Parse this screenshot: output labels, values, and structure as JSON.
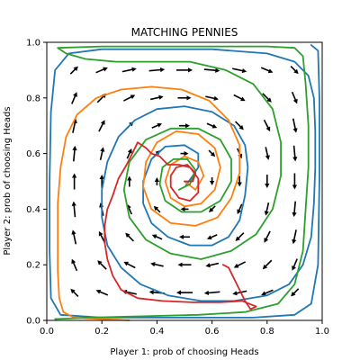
{
  "chart_data": {
    "type": "line",
    "title": "MATCHING PENNIES",
    "xlabel": "Player 1: prob of choosing Heads",
    "ylabel": "Player 2: prob of choosing Heads",
    "xlim": [
      0.0,
      1.0
    ],
    "ylim": [
      0.0,
      1.0
    ],
    "xticks": [
      "0.0",
      "0.2",
      "0.4",
      "0.6",
      "0.8",
      "1.0"
    ],
    "yticks": [
      "0.0",
      "0.2",
      "0.4",
      "0.6",
      "0.8",
      "1.0"
    ],
    "grid": false,
    "vector_field": {
      "grid": [
        0.1,
        0.2,
        0.3,
        0.4,
        0.5,
        0.6,
        0.7,
        0.8,
        0.9
      ]
    },
    "series": [
      {
        "color": "#1f77b4",
        "points": [
          [
            0.505,
            0.485
          ],
          [
            0.53,
            0.52
          ],
          [
            0.55,
            0.55
          ],
          [
            0.55,
            0.6
          ],
          [
            0.5,
            0.63
          ],
          [
            0.43,
            0.625
          ],
          [
            0.38,
            0.58
          ],
          [
            0.35,
            0.5
          ],
          [
            0.35,
            0.42
          ],
          [
            0.38,
            0.35
          ],
          [
            0.44,
            0.3
          ],
          [
            0.52,
            0.27
          ],
          [
            0.6,
            0.27
          ],
          [
            0.66,
            0.3
          ],
          [
            0.7,
            0.36
          ],
          [
            0.72,
            0.45
          ],
          [
            0.73,
            0.55
          ],
          [
            0.72,
            0.63
          ],
          [
            0.68,
            0.7
          ],
          [
            0.6,
            0.75
          ],
          [
            0.5,
            0.77
          ],
          [
            0.4,
            0.76
          ],
          [
            0.32,
            0.72
          ],
          [
            0.26,
            0.66
          ],
          [
            0.22,
            0.57
          ],
          [
            0.2,
            0.47
          ],
          [
            0.2,
            0.37
          ],
          [
            0.22,
            0.27
          ],
          [
            0.27,
            0.19
          ],
          [
            0.34,
            0.13
          ],
          [
            0.44,
            0.09
          ],
          [
            0.56,
            0.07
          ],
          [
            0.68,
            0.07
          ],
          [
            0.8,
            0.09
          ],
          [
            0.88,
            0.13
          ],
          [
            0.93,
            0.2
          ],
          [
            0.96,
            0.3
          ],
          [
            0.97,
            0.42
          ],
          [
            0.975,
            0.55
          ],
          [
            0.975,
            0.68
          ],
          [
            0.97,
            0.8
          ],
          [
            0.95,
            0.88
          ],
          [
            0.9,
            0.93
          ],
          [
            0.8,
            0.96
          ],
          [
            0.6,
            0.975
          ],
          [
            0.4,
            0.975
          ],
          [
            0.2,
            0.975
          ],
          [
            0.08,
            0.96
          ],
          [
            0.03,
            0.9
          ],
          [
            0.015,
            0.75
          ],
          [
            0.01,
            0.5
          ],
          [
            0.01,
            0.25
          ],
          [
            0.015,
            0.08
          ],
          [
            0.05,
            0.02
          ],
          [
            0.2,
            0.01
          ],
          [
            0.5,
            0.01
          ],
          [
            0.75,
            0.01
          ],
          [
            0.9,
            0.02
          ],
          [
            0.96,
            0.06
          ],
          [
            0.985,
            0.2
          ],
          [
            0.99,
            0.5
          ],
          [
            0.99,
            0.8
          ],
          [
            0.985,
            0.97
          ],
          [
            0.96,
            0.99
          ]
        ]
      },
      {
        "color": "#ff7f0e",
        "points": [
          [
            0.5,
            0.5
          ],
          [
            0.54,
            0.47
          ],
          [
            0.57,
            0.52
          ],
          [
            0.55,
            0.57
          ],
          [
            0.5,
            0.59
          ],
          [
            0.45,
            0.56
          ],
          [
            0.43,
            0.5
          ],
          [
            0.45,
            0.44
          ],
          [
            0.5,
            0.41
          ],
          [
            0.56,
            0.42
          ],
          [
            0.61,
            0.47
          ],
          [
            0.63,
            0.55
          ],
          [
            0.61,
            0.62
          ],
          [
            0.55,
            0.67
          ],
          [
            0.47,
            0.68
          ],
          [
            0.4,
            0.64
          ],
          [
            0.36,
            0.57
          ],
          [
            0.35,
            0.48
          ],
          [
            0.38,
            0.4
          ],
          [
            0.45,
            0.35
          ],
          [
            0.54,
            0.34
          ],
          [
            0.62,
            0.37
          ],
          [
            0.67,
            0.44
          ],
          [
            0.7,
            0.53
          ],
          [
            0.7,
            0.63
          ],
          [
            0.66,
            0.72
          ],
          [
            0.59,
            0.79
          ],
          [
            0.49,
            0.83
          ],
          [
            0.38,
            0.84
          ],
          [
            0.27,
            0.83
          ],
          [
            0.18,
            0.8
          ],
          [
            0.11,
            0.74
          ],
          [
            0.07,
            0.66
          ],
          [
            0.05,
            0.55
          ],
          [
            0.04,
            0.42
          ],
          [
            0.04,
            0.3
          ],
          [
            0.04,
            0.18
          ],
          [
            0.045,
            0.08
          ],
          [
            0.06,
            0.03
          ],
          [
            0.1,
            0.01
          ],
          [
            0.2,
            0.005
          ],
          [
            0.3,
            0.0
          ]
        ]
      },
      {
        "color": "#2ca02c",
        "points": [
          [
            0.48,
            0.47
          ],
          [
            0.52,
            0.49
          ],
          [
            0.54,
            0.54
          ],
          [
            0.51,
            0.58
          ],
          [
            0.46,
            0.58
          ],
          [
            0.42,
            0.55
          ],
          [
            0.41,
            0.49
          ],
          [
            0.43,
            0.43
          ],
          [
            0.49,
            0.39
          ],
          [
            0.56,
            0.39
          ],
          [
            0.63,
            0.43
          ],
          [
            0.67,
            0.5
          ],
          [
            0.67,
            0.58
          ],
          [
            0.63,
            0.65
          ],
          [
            0.55,
            0.69
          ],
          [
            0.45,
            0.69
          ],
          [
            0.36,
            0.65
          ],
          [
            0.3,
            0.57
          ],
          [
            0.28,
            0.47
          ],
          [
            0.3,
            0.37
          ],
          [
            0.36,
            0.29
          ],
          [
            0.45,
            0.24
          ],
          [
            0.56,
            0.22
          ],
          [
            0.67,
            0.25
          ],
          [
            0.76,
            0.31
          ],
          [
            0.82,
            0.4
          ],
          [
            0.85,
            0.52
          ],
          [
            0.85,
            0.64
          ],
          [
            0.82,
            0.76
          ],
          [
            0.75,
            0.85
          ],
          [
            0.65,
            0.9
          ],
          [
            0.52,
            0.93
          ],
          [
            0.38,
            0.93
          ],
          [
            0.25,
            0.93
          ],
          [
            0.14,
            0.94
          ],
          [
            0.07,
            0.96
          ],
          [
            0.04,
            0.98
          ],
          [
            0.2,
            0.985
          ],
          [
            0.5,
            0.985
          ],
          [
            0.8,
            0.985
          ],
          [
            0.9,
            0.98
          ],
          [
            0.93,
            0.95
          ],
          [
            0.94,
            0.85
          ],
          [
            0.95,
            0.7
          ],
          [
            0.95,
            0.55
          ],
          [
            0.94,
            0.4
          ],
          [
            0.93,
            0.25
          ],
          [
            0.9,
            0.13
          ],
          [
            0.84,
            0.06
          ],
          [
            0.72,
            0.03
          ],
          [
            0.55,
            0.02
          ],
          [
            0.35,
            0.015
          ],
          [
            0.15,
            0.01
          ],
          [
            0.03,
            0.005
          ]
        ]
      },
      {
        "color": "#d62728",
        "points": [
          [
            0.5,
            0.5
          ],
          [
            0.53,
            0.5
          ],
          [
            0.54,
            0.53
          ],
          [
            0.51,
            0.56
          ],
          [
            0.47,
            0.55
          ],
          [
            0.45,
            0.52
          ],
          [
            0.45,
            0.48
          ],
          [
            0.48,
            0.44
          ],
          [
            0.52,
            0.43
          ],
          [
            0.55,
            0.46
          ],
          [
            0.55,
            0.51
          ],
          [
            0.52,
            0.55
          ],
          [
            0.48,
            0.56
          ],
          [
            0.44,
            0.56
          ],
          [
            0.41,
            0.59
          ],
          [
            0.38,
            0.6
          ],
          [
            0.36,
            0.62
          ],
          [
            0.33,
            0.64
          ],
          [
            0.31,
            0.6
          ],
          [
            0.29,
            0.56
          ],
          [
            0.26,
            0.51
          ],
          [
            0.24,
            0.45
          ],
          [
            0.22,
            0.4
          ],
          [
            0.21,
            0.34
          ],
          [
            0.21,
            0.28
          ],
          [
            0.22,
            0.22
          ],
          [
            0.24,
            0.16
          ],
          [
            0.27,
            0.11
          ],
          [
            0.33,
            0.08
          ],
          [
            0.42,
            0.07
          ],
          [
            0.53,
            0.065
          ],
          [
            0.63,
            0.065
          ],
          [
            0.71,
            0.07
          ],
          [
            0.76,
            0.05
          ],
          [
            0.74,
            0.04
          ],
          [
            0.72,
            0.07
          ],
          [
            0.7,
            0.11
          ],
          [
            0.68,
            0.15
          ],
          [
            0.66,
            0.19
          ],
          [
            0.64,
            0.2
          ]
        ]
      }
    ]
  }
}
